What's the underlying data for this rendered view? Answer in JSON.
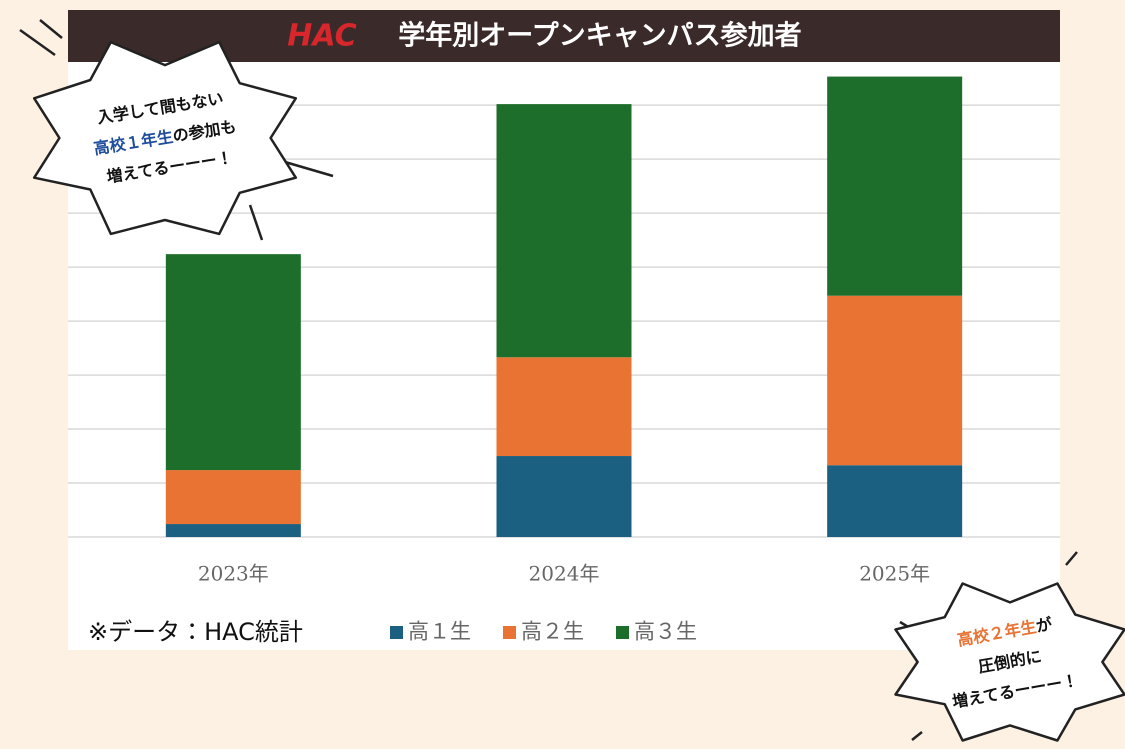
{
  "logo": "HAC",
  "chart_data": {
    "type": "stacked_bar",
    "title": "学年別オープンキャンパス参加者",
    "categories": [
      "2023年",
      "2024年",
      "2025年"
    ],
    "series": [
      {
        "name": "高１生",
        "color": "#1b6080",
        "values": [
          2.4,
          15,
          13.3
        ]
      },
      {
        "name": "高２生",
        "color": "#e87333",
        "values": [
          10,
          18.3,
          31.4
        ]
      },
      {
        "name": "高３生",
        "color": "#1e6e2b",
        "values": [
          40,
          46.9,
          40.6
        ]
      }
    ],
    "ylim": [
      0,
      88
    ],
    "yticks": [
      0,
      10,
      20,
      30,
      40,
      50,
      60,
      70,
      80
    ],
    "grid": true,
    "source": "※データ：HAC統計",
    "annotations": [
      {
        "lines": [
          [
            {
              "text": "入学して間もない"
            }
          ],
          [
            {
              "text": "高校１年生",
              "color": "#1f4e9c"
            },
            {
              "text": "の参加も"
            }
          ],
          [
            {
              "text": "増えてるーーー！"
            }
          ]
        ]
      },
      {
        "lines": [
          [
            {
              "text": "高校２年生",
              "color": "#e87333"
            },
            {
              "text": "が"
            }
          ],
          [
            {
              "text": "圧倒的に"
            }
          ],
          [
            {
              "text": "増えてるーーー！"
            }
          ]
        ]
      }
    ]
  }
}
